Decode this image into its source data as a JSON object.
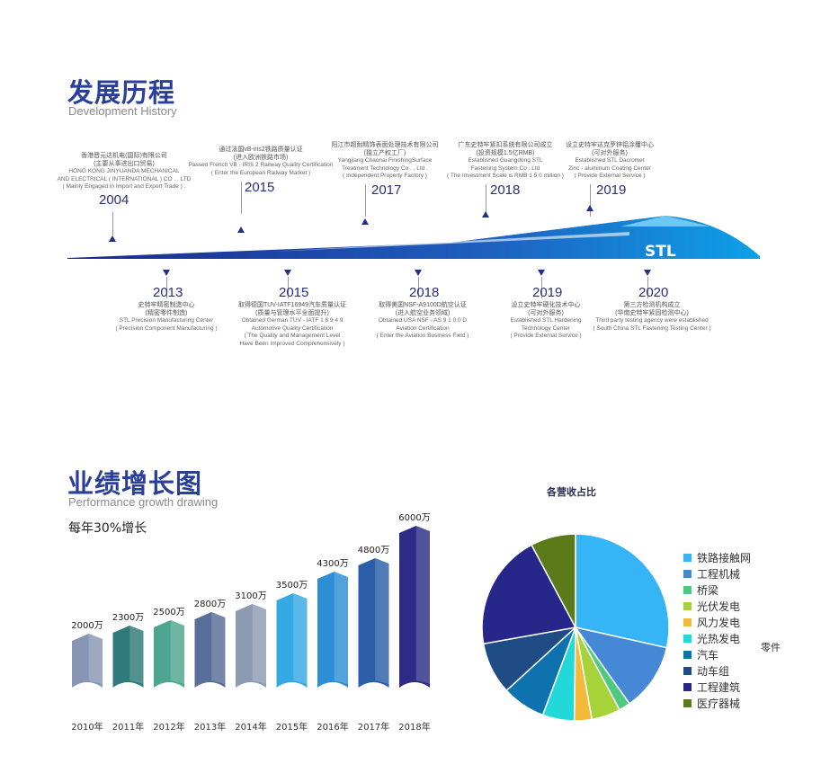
{
  "history": {
    "title": "发展历程",
    "subtitle": "Development History",
    "top_events": [
      {
        "year": "2004",
        "lines": [
          "香港晋元达机电(国际)有限公司",
          "(主要从事进出口贸易)",
          "HONG KONG JINYUANDA MECHANICAL",
          "AND ELECTRICAL ( INTERNATIONAL ) CO . , LTD",
          "( Mainly Engaged in Import and Export Trade ) ."
        ]
      },
      {
        "year": "2015",
        "lines": [
          "通过法国vB-iris2铁路质量认证",
          "(进入欧洲铁路市场)",
          "Passed French VB - IRIS 2 Railway Quality Certification",
          "( Enter the European Railway Market )"
        ]
      },
      {
        "year": "2017",
        "lines": [
          "阳江市超耐精饰表面处理技术有限公司",
          "(独立产权工厂)",
          "Yangjiang Chaonai FinishingSurface",
          "Treatment Technology Co . , Ltd .",
          "( Independent Property Factory )"
        ]
      },
      {
        "year": "2018",
        "lines": [
          "广东史特牢紧扣系统有限公司成立",
          "(投资规模1.5亿RMB)",
          "Established Guangdong STL",
          "Fastening System Co . Ltd",
          "( The Investment Scale is RMB 1 5 0 million )"
        ]
      },
      {
        "year": "2019",
        "lines": [
          "设立史特牢达克罗锌铝涂覆中心",
          "(可对外服务)",
          "Established STL Dacromet",
          "Zinc - aluminum Coating Center",
          "( Provide External Service )"
        ]
      }
    ],
    "bottom_events": [
      {
        "year": "2013",
        "lines": [
          "史特牢精密制造中心",
          "(精密零件制造)",
          "STL Precision Manufacturing Center",
          "( Precision Component Manufacturing )"
        ]
      },
      {
        "year": "2015",
        "lines": [
          "取得德国TUV-IATF16949汽车质量认证",
          "(质量与管理水平全面提升)",
          "Obtained German TUV - IATF 1 6 9 4 9",
          "Automotive Quality Certification",
          "( The Quality and Management Level",
          "Have Been Improved Comprehensively )"
        ]
      },
      {
        "year": "2018",
        "lines": [
          "取得美国NSF-A9100D航空认证",
          "(进入航空业务领域)",
          "Obtained USA NSF - AS 9 1 0 0 D",
          "Aviation Certification",
          "( Enter the Aviation Business Field )"
        ]
      },
      {
        "year": "2019",
        "lines": [
          "设立史特牢硬化技术中心",
          "(可对外服务)",
          "Established STL Hardening",
          "Technology Center",
          "( Provide External Service )"
        ]
      },
      {
        "year": "2020",
        "lines": [
          "第三方检测机构成立",
          "(华南史特牢紧固检测中心)",
          "Third party testing agency were established",
          "( South China STL Fastening Testing Center )"
        ]
      }
    ],
    "logo": "STL"
  },
  "performance": {
    "title": "业绩增长图",
    "subtitle": "Performance growth drawing",
    "growth": "每年30%增长",
    "stray_text": "零件"
  },
  "chart_data": [
    {
      "type": "bar",
      "categories": [
        "2010年",
        "2011年",
        "2012年",
        "2013年",
        "2014年",
        "2015年",
        "2016年",
        "2017年",
        "2018年"
      ],
      "values": [
        2000,
        2300,
        2500,
        2800,
        3100,
        3500,
        4300,
        4800,
        6000
      ],
      "labels": [
        "2000万",
        "2300万",
        "2500万",
        "2800万",
        "3100万",
        "3500万",
        "4300万",
        "4800万",
        "6000万"
      ],
      "colors": [
        "#8797b3",
        "#2f7a7a",
        "#4ea58f",
        "#5a6d98",
        "#8c9ab2",
        "#35a9e3",
        "#2c8fd6",
        "#2a5ea8",
        "#2d2b86"
      ]
    },
    {
      "type": "pie",
      "title": "各营收占比",
      "legend": "right",
      "categories": [
        "铁路接触网",
        "工程机械",
        "桥梁",
        "光伏发电",
        "风力发电",
        "光热发电",
        "汽车",
        "动车组",
        "工程建筑",
        "医疗器械"
      ],
      "values": [
        28.5,
        11.7,
        2,
        5,
        3,
        5.5,
        7.5,
        9,
        20,
        7.8
      ],
      "colors": [
        "#35b5f5",
        "#4488d6",
        "#4fc981",
        "#a6d23a",
        "#f4b93b",
        "#23d8d8",
        "#0d72ad",
        "#1f4c84",
        "#27278a",
        "#5b7a1a"
      ]
    }
  ]
}
